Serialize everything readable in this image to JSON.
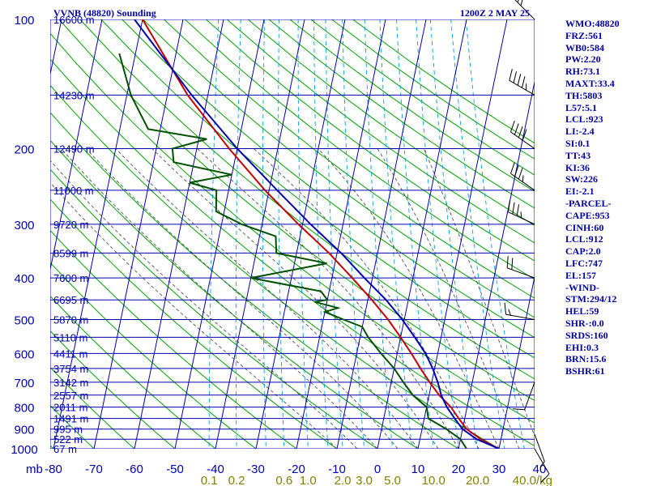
{
  "header": {
    "station": "VVNB (48820) Sounding",
    "time": "1200Z  2 MAY 25"
  },
  "chart_data": {
    "type": "line",
    "title": "VVNB (48820) Sounding",
    "pressure_ticks": [
      "100",
      "200",
      "300",
      "400",
      "500",
      "600",
      "700",
      "800",
      "900",
      "1000"
    ],
    "pressure_unit": "mb",
    "temperature_ticks": [
      "-80",
      "-70",
      "-60",
      "-50",
      "-40",
      "-30",
      "-20",
      "-10",
      "0",
      "10",
      "20",
      "30",
      "40"
    ],
    "mixing_ratio_ticks": [
      "0.1",
      "0.2",
      "0.6",
      "1.0",
      "2.0",
      "3.0",
      "5.0",
      "10.0",
      "20.0",
      "40.0"
    ],
    "mixing_ratio_unit": "g/kg",
    "height_labels": [
      {
        "p": 100,
        "label": "16600 m"
      },
      {
        "p": 150,
        "label": "14230 m"
      },
      {
        "p": 200,
        "label": "12490 m"
      },
      {
        "p": 250,
        "label": "11000 m"
      },
      {
        "p": 300,
        "label": "9720 m"
      },
      {
        "p": 350,
        "label": "8599 m"
      },
      {
        "p": 400,
        "label": "7600 m"
      },
      {
        "p": 450,
        "label": "6695 m"
      },
      {
        "p": 500,
        "label": "5870 m"
      },
      {
        "p": 550,
        "label": "5110 m"
      },
      {
        "p": 600,
        "label": "4411 m"
      },
      {
        "p": 650,
        "label": "3754 m"
      },
      {
        "p": 700,
        "label": "3142 m"
      },
      {
        "p": 750,
        "label": "2557 m"
      },
      {
        "p": 800,
        "label": "2011 m"
      },
      {
        "p": 850,
        "label": "1491 m"
      },
      {
        "p": 900,
        "label": "995 m"
      },
      {
        "p": 950,
        "label": "522 m"
      },
      {
        "p": 1000,
        "label": "67 m"
      }
    ],
    "series": [
      {
        "color": "#c00000",
        "points": [
          [
            1000,
            30
          ],
          [
            950,
            25
          ],
          [
            900,
            21
          ],
          [
            850,
            18.5
          ],
          [
            800,
            16
          ],
          [
            750,
            12.5
          ],
          [
            700,
            9.5
          ],
          [
            650,
            6.5
          ],
          [
            600,
            3.5
          ],
          [
            550,
            0
          ],
          [
            500,
            -4
          ],
          [
            450,
            -9
          ],
          [
            400,
            -15
          ],
          [
            350,
            -22
          ],
          [
            300,
            -31
          ],
          [
            250,
            -41
          ],
          [
            200,
            -52
          ],
          [
            150,
            -65
          ],
          [
            100,
            -80
          ]
        ]
      },
      {
        "color": "#005000",
        "points": [
          [
            1000,
            22
          ],
          [
            950,
            20
          ],
          [
            900,
            16
          ],
          [
            850,
            11
          ],
          [
            800,
            10
          ],
          [
            750,
            6
          ],
          [
            700,
            3
          ],
          [
            650,
            0
          ],
          [
            600,
            -4
          ],
          [
            550,
            -8
          ],
          [
            520,
            -10
          ],
          [
            500,
            -15
          ],
          [
            480,
            -20
          ],
          [
            470,
            -17
          ],
          [
            455,
            -23
          ],
          [
            450,
            -20
          ],
          [
            430,
            -22
          ],
          [
            400,
            -40
          ],
          [
            370,
            -22
          ],
          [
            350,
            -35
          ],
          [
            320,
            -36
          ],
          [
            300,
            -45
          ],
          [
            280,
            -52
          ],
          [
            250,
            -53
          ],
          [
            240,
            -60
          ],
          [
            230,
            -50
          ],
          [
            215,
            -65
          ],
          [
            200,
            -66
          ],
          [
            190,
            -58
          ],
          [
            180,
            -73
          ],
          [
            150,
            -79
          ],
          [
            120,
            -84
          ]
        ]
      },
      {
        "color": "#0000b0",
        "points": [
          [
            1000,
            30
          ],
          [
            950,
            24
          ],
          [
            900,
            20
          ],
          [
            850,
            17.5
          ],
          [
            800,
            15
          ],
          [
            750,
            13
          ],
          [
            700,
            11.5
          ],
          [
            650,
            9.5
          ],
          [
            600,
            7
          ],
          [
            550,
            3.5
          ],
          [
            500,
            -0.5
          ],
          [
            450,
            -5.5
          ],
          [
            400,
            -12
          ],
          [
            350,
            -19
          ],
          [
            300,
            -28
          ],
          [
            250,
            -38
          ],
          [
            200,
            -50
          ],
          [
            150,
            -64
          ],
          [
            100,
            -82
          ]
        ]
      }
    ],
    "winds": [
      {
        "p": 100,
        "dir": 315,
        "kt": 25
      },
      {
        "p": 150,
        "dir": 300,
        "kt": 45
      },
      {
        "p": 200,
        "dir": 305,
        "kt": 40
      },
      {
        "p": 250,
        "dir": 305,
        "kt": 35
      },
      {
        "p": 300,
        "dir": 295,
        "kt": 35
      },
      {
        "p": 400,
        "dir": 290,
        "kt": 20
      },
      {
        "p": 500,
        "dir": 280,
        "kt": 15
      },
      {
        "p": 700,
        "dir": 200,
        "kt": 10
      },
      {
        "p": 925,
        "dir": 160,
        "kt": 5
      },
      {
        "p": 1000,
        "dir": 150,
        "kt": 10
      }
    ]
  },
  "indices": [
    "WMO:48820",
    "FRZ:561",
    "WB0:584",
    "PW:2.20",
    "RH:73.1",
    "MAXT:33.4",
    "TH:5803",
    "L57:5.1",
    "LCL:923",
    "LI:-2.4",
    "SI:0.1",
    "TT:43",
    "KI:36",
    "SW:226",
    "EI:-2.1",
    "-PARCEL-",
    "CAPE:953",
    "CINH:60",
    "LCL:912",
    "CAP:2.0",
    "LFC:747",
    "EL:157",
    "-WIND-",
    "STM:294/12",
    "HEL:59",
    "SHR-:0.0",
    "SRDS:160",
    "EHI:0.3",
    "BRN:15.6",
    "BSHR:61"
  ],
  "colors": {
    "isobar": "#0000b0",
    "dry_adiabat": "#00a000",
    "moist_adiabat": "#505050",
    "mixing_ratio": "#00a0e0",
    "temperature": "#c00000",
    "dewpoint": "#005000",
    "parcel": "#0000b0"
  }
}
